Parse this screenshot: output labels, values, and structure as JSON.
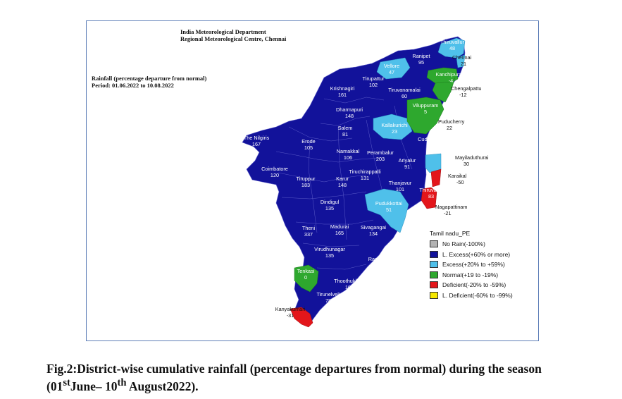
{
  "header": {
    "org_line1": "India Meteorological Department",
    "org_line2": "Regional Meteorological Centre, Chennai",
    "title": "Rainfall (percentage departure from normal)",
    "period": "Period: 01.06.2022 to 10.08.2022"
  },
  "colors": {
    "no_rain": "#b3b3b3",
    "large_excess": "#12129a",
    "excess": "#4fc0ea",
    "normal": "#2ea82e",
    "deficient": "#e3161b",
    "large_deficient": "#f5e800"
  },
  "legend": {
    "title": "Tamil nadu_PE",
    "items": [
      {
        "label": "No Rain(-100%)",
        "category": "no_rain"
      },
      {
        "label": "L. Excess(+60% or more)",
        "category": "large_excess"
      },
      {
        "label": "Excess(+20% to +59%)",
        "category": "excess"
      },
      {
        "label": "Normal(+19 to -19%)",
        "category": "normal"
      },
      {
        "label": "Deficient(-20% to -59%)",
        "category": "deficient"
      },
      {
        "label": "L. Deficient(-60% to -99%)",
        "category": "large_deficient"
      }
    ]
  },
  "districts": [
    {
      "name": "Thiruvallur",
      "value": "48",
      "category": "excess"
    },
    {
      "name": "Chennai",
      "value": "21",
      "category": "excess"
    },
    {
      "name": "Ranipet",
      "value": "95",
      "category": "large_excess"
    },
    {
      "name": "Vellore",
      "value": "47",
      "category": "excess"
    },
    {
      "name": "Kanchipuram",
      "value": "-4",
      "category": "normal"
    },
    {
      "name": "Chengalpattu",
      "value": "-12",
      "category": "normal"
    },
    {
      "name": "Tirupattur",
      "value": "102",
      "category": "large_excess"
    },
    {
      "name": "Tiruvanamalai",
      "value": "60",
      "category": "large_excess"
    },
    {
      "name": "Krishnagiri",
      "value": "161",
      "category": "large_excess"
    },
    {
      "name": "Viluppuram",
      "value": "5",
      "category": "normal"
    },
    {
      "name": "Dharmapuri",
      "value": "148",
      "category": "large_excess"
    },
    {
      "name": "Puducherry",
      "value": "22",
      "category": "excess"
    },
    {
      "name": "Kallakurichi",
      "value": "23",
      "category": "excess"
    },
    {
      "name": "Salem",
      "value": "81",
      "category": "large_excess"
    },
    {
      "name": "Cuddalore",
      "value": "64",
      "category": "large_excess"
    },
    {
      "name": "The Nilgiris",
      "value": "167",
      "category": "large_excess"
    },
    {
      "name": "Erode",
      "value": "105",
      "category": "large_excess"
    },
    {
      "name": "Namakkal",
      "value": "106",
      "category": "large_excess"
    },
    {
      "name": "Perambalur",
      "value": "203",
      "category": "large_excess"
    },
    {
      "name": "Mayiladuthurai",
      "value": "30",
      "category": "excess"
    },
    {
      "name": "Ariyalur",
      "value": "91",
      "category": "large_excess"
    },
    {
      "name": "Coimbatore",
      "value": "120",
      "category": "large_excess"
    },
    {
      "name": "Tiruchirappalli",
      "value": "131",
      "category": "large_excess"
    },
    {
      "name": "Karaikal",
      "value": "-50",
      "category": "deficient"
    },
    {
      "name": "Tiruppur",
      "value": "183",
      "category": "large_excess"
    },
    {
      "name": "Karur",
      "value": "148",
      "category": "large_excess"
    },
    {
      "name": "Thanjavur",
      "value": "101",
      "category": "large_excess"
    },
    {
      "name": "Thiruvarur",
      "value": "83",
      "category": "large_excess"
    },
    {
      "name": "Dindigul",
      "value": "135",
      "category": "large_excess"
    },
    {
      "name": "Pudukkottai",
      "value": "51",
      "category": "excess"
    },
    {
      "name": "Nagapattinam",
      "value": "-21",
      "category": "deficient"
    },
    {
      "name": "Theni",
      "value": "337",
      "category": "large_excess"
    },
    {
      "name": "Madurai",
      "value": "165",
      "category": "large_excess"
    },
    {
      "name": "Sivagangai",
      "value": "134",
      "category": "large_excess"
    },
    {
      "name": "Virudhunagar",
      "value": "135",
      "category": "large_excess"
    },
    {
      "name": "Ramanathapuram",
      "value": "122",
      "category": "large_excess"
    },
    {
      "name": "Tenkasi",
      "value": "0",
      "category": "normal"
    },
    {
      "name": "Thoothukkudi",
      "value": "104",
      "category": "large_excess"
    },
    {
      "name": "Tirunelveli",
      "value": "78",
      "category": "large_excess"
    },
    {
      "name": "Kanyakumari",
      "value": "-31",
      "category": "deficient"
    }
  ],
  "caption": {
    "prefix": "Fig.2:District-wise cumulative rainfall (percentage departures from normal) during the season (01",
    "sup1": "st",
    "middle": "June– 10",
    "sup2": "th",
    "suffix": " August2022)."
  }
}
